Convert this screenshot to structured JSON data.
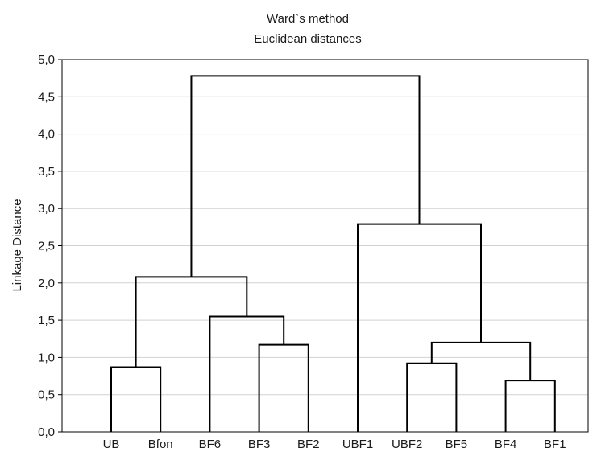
{
  "chart_data": {
    "type": "dendrogram",
    "title": "Ward`s method",
    "subtitle": "Euclidean distances",
    "xlabel": "",
    "ylabel": "Linkage Distance",
    "ylim": [
      0,
      5
    ],
    "yticks": [
      0,
      0.5,
      1,
      1.5,
      2,
      2.5,
      3,
      3.5,
      4,
      4.5,
      5
    ],
    "ytick_labels": [
      "0,0",
      "0,5",
      "1,0",
      "1,5",
      "2,0",
      "2,5",
      "3,0",
      "3,5",
      "4,0",
      "4,5",
      "5,0"
    ],
    "grid": true,
    "leaves": [
      "UB",
      "Bfon",
      "BF6",
      "BF3",
      "BF2",
      "UBF1",
      "UBF2",
      "BF5",
      "BF4",
      "BF1"
    ],
    "merges": [
      {
        "left": "BF4",
        "right": "BF1",
        "distance": 0.69
      },
      {
        "left": "UB",
        "right": "Bfon",
        "distance": 0.87
      },
      {
        "left": "UBF2",
        "right": "BF5",
        "distance": 0.92
      },
      {
        "left": "BF3",
        "right": "BF2",
        "distance": 1.17
      },
      {
        "left": "UBF2+BF5",
        "right": "BF4+BF1",
        "distance": 1.2
      },
      {
        "left": "BF6",
        "right": "BF3+BF2",
        "distance": 1.55
      },
      {
        "left": "UB+Bfon",
        "right": "BF6+BF3+BF2",
        "distance": 2.08
      },
      {
        "left": "UBF1",
        "right": "UBF2+BF5+BF4+BF1",
        "distance": 2.79
      },
      {
        "left": "UB+Bfon+BF6+BF3+BF2",
        "right": "UBF1+UBF2+BF5+BF4+BF1",
        "distance": 4.78
      }
    ]
  }
}
